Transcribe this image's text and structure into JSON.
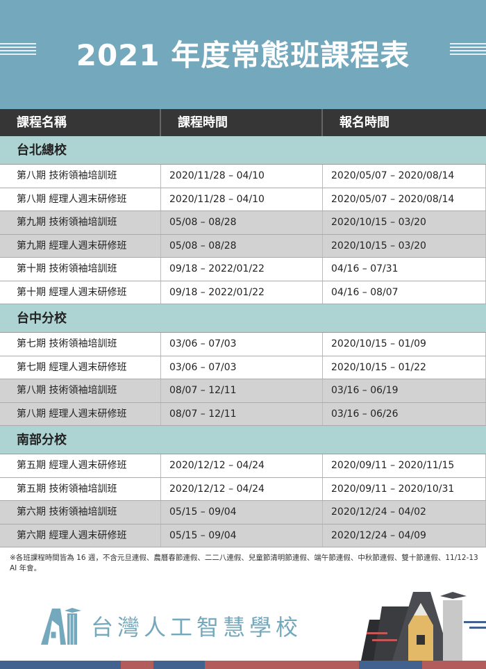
{
  "title": "2021 年度常態班課程表",
  "headers": [
    "課程名稱",
    "課程時間",
    "報名時間"
  ],
  "sections": [
    {
      "name": "台北總校",
      "rows": [
        [
          "第八期 技術領袖培訓班",
          "2020/11/28 – 04/10",
          "2020/05/07 – 2020/08/14"
        ],
        [
          "第八期 經理人週末研修班",
          "2020/11/28 – 04/10",
          "2020/05/07 – 2020/08/14"
        ],
        [
          "第九期 技術領袖培訓班",
          "05/08 – 08/28",
          "2020/10/15 – 03/20"
        ],
        [
          "第九期 經理人週末研修班",
          "05/08 – 08/28",
          "2020/10/15 – 03/20"
        ],
        [
          "第十期 技術領袖培訓班",
          "09/18 – 2022/01/22",
          "04/16 – 07/31"
        ],
        [
          "第十期 經理人週末研修班",
          "09/18 – 2022/01/22",
          "04/16 – 08/07"
        ]
      ],
      "gray": [
        2,
        3
      ]
    },
    {
      "name": "台中分校",
      "rows": [
        [
          "第七期 技術領袖培訓班",
          "03/06 – 07/03",
          "2020/10/15 – 01/09"
        ],
        [
          "第七期 經理人週末研修班",
          "03/06 – 07/03",
          "2020/10/15 – 01/22"
        ],
        [
          "第八期 技術領袖培訓班",
          "08/07 – 12/11",
          "03/16 – 06/19"
        ],
        [
          "第八期 經理人週末研修班",
          "08/07 – 12/11",
          "03/16 – 06/26"
        ]
      ],
      "gray": [
        2,
        3
      ]
    },
    {
      "name": "南部分校",
      "rows": [
        [
          "第五期 經理人週末研修班",
          "2020/12/12 – 04/24",
          "2020/09/11 – 2020/11/15"
        ],
        [
          "第五期 技術領袖培訓班",
          "2020/12/12 – 04/24",
          "2020/09/11 – 2020/10/31"
        ],
        [
          "第六期 技術領袖培訓班",
          "05/15 – 09/04",
          "2020/12/24 – 04/02"
        ],
        [
          "第六期 經理人週末研修班",
          "05/15 – 09/04",
          "2020/12/24 – 04/09"
        ]
      ],
      "gray": [
        2,
        3
      ]
    }
  ],
  "note": "※各班課程時間皆為 16 週，不含元旦連假、農曆春節連假、二二八連假、兒童節清明節連假、端午節連假、中秋節連假、雙十節連假、11/12-13 AI 年會。",
  "logo": {
    "text": "台灣人工智慧學校",
    "mark": "AI"
  },
  "colors": {
    "header": "#74a8bd",
    "section": "#aed3d3",
    "dark": "#363636",
    "gray": "#d2d2d2",
    "blue": "#41618f",
    "red": "#b35c5c"
  }
}
